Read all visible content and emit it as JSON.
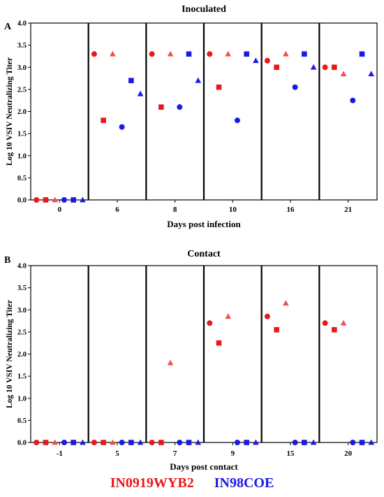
{
  "colors": {
    "red": "#e8191b",
    "blue": "#1a1ae6",
    "light_red": "#f0504e"
  },
  "legend": {
    "strain_red": "IN0919WYB2",
    "strain_blue": "IN98COE"
  },
  "chart_data": [
    {
      "panel": "A",
      "type": "scatter",
      "title": "Inoculated",
      "xlabel": "Days post infection",
      "ylabel": "Log 10 VSIV Neutralizing Titer",
      "ylim": [
        0,
        4.0
      ],
      "yticks": [
        "0.0",
        "0.5",
        "1.0",
        "1.5",
        "2.0",
        "2.5",
        "3.0",
        "3.5",
        "4.0"
      ],
      "grid": false,
      "groups": [
        "0",
        "6",
        "8",
        "10",
        "16",
        "21"
      ],
      "series": [
        {
          "color": "red",
          "marker": "circle",
          "values": [
            0,
            3.3,
            3.3,
            3.3,
            3.15,
            3.0
          ]
        },
        {
          "color": "red",
          "marker": "square",
          "values": [
            0,
            1.8,
            2.1,
            2.55,
            3.0,
            3.0
          ]
        },
        {
          "color": "red",
          "marker": "triangle",
          "values": [
            0,
            3.3,
            3.3,
            3.3,
            3.3,
            2.85
          ]
        },
        {
          "color": "blue",
          "marker": "circle",
          "values": [
            0,
            1.65,
            2.1,
            1.8,
            2.55,
            2.25
          ]
        },
        {
          "color": "blue",
          "marker": "square",
          "values": [
            0,
            2.7,
            3.3,
            3.3,
            3.3,
            3.3
          ]
        },
        {
          "color": "blue",
          "marker": "triangle",
          "values": [
            0,
            2.4,
            2.7,
            3.15,
            3.0,
            2.85
          ]
        }
      ]
    },
    {
      "panel": "B",
      "type": "scatter",
      "title": "Contact",
      "xlabel": "Days post contact",
      "ylabel": "Log 10 VSIV Neutralizing Titer",
      "ylim": [
        0,
        4.0
      ],
      "yticks": [
        "0.0",
        "0.5",
        "1.0",
        "1.5",
        "2.0",
        "2.5",
        "3.0",
        "3.5",
        "4.0"
      ],
      "grid": false,
      "groups": [
        "-1",
        "5",
        "7",
        "9",
        "15",
        "20"
      ],
      "series": [
        {
          "color": "red",
          "marker": "circle",
          "values": [
            0,
            0,
            0,
            2.7,
            2.85,
            2.7
          ]
        },
        {
          "color": "red",
          "marker": "square",
          "values": [
            0,
            0,
            0,
            2.25,
            2.55,
            2.55
          ]
        },
        {
          "color": "red",
          "marker": "triangle",
          "values": [
            0,
            0,
            1.8,
            2.85,
            3.15,
            2.7
          ]
        },
        {
          "color": "blue",
          "marker": "circle",
          "values": [
            0,
            0,
            0,
            0,
            0,
            0
          ]
        },
        {
          "color": "blue",
          "marker": "square",
          "values": [
            0,
            0,
            0,
            0,
            0,
            0
          ]
        },
        {
          "color": "blue",
          "marker": "triangle",
          "values": [
            0,
            0,
            0,
            0,
            0,
            0
          ]
        }
      ]
    }
  ]
}
